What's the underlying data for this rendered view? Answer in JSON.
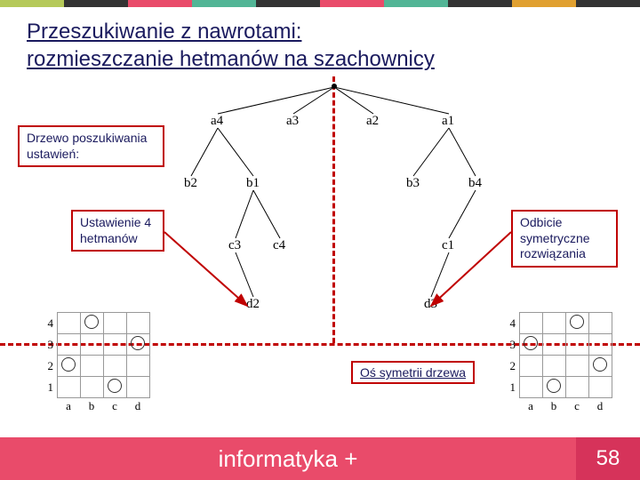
{
  "colorbar": [
    "#b5c95a",
    "#333333",
    "#e94b6a",
    "#52b596",
    "#333333",
    "#e94b6a",
    "#52b596",
    "#333333",
    "#e0a030",
    "#333333"
  ],
  "title": {
    "line1": "Przeszukiwanie z nawrotami:",
    "line2": "rozmieszczanie hetmanów na szachownicy"
  },
  "labels": {
    "tree_search": "Drzewo poszukiwania ustawień:",
    "placement": "Ustawienie 4 hetmanów",
    "symmetric": "Odbicie symetryczne rozwiązania",
    "axis": "Oś symetrii drzewa"
  },
  "tree": {
    "level_a": [
      "a4",
      "a3",
      "a2",
      "a1"
    ],
    "level_b_left": [
      "b2",
      "b1"
    ],
    "level_b_right": [
      "b3",
      "b4"
    ],
    "level_c_left": [
      "c3",
      "c4"
    ],
    "level_c_right": [
      "c1"
    ],
    "level_d_left": [
      "d2"
    ],
    "level_d_right": [
      "d3"
    ]
  },
  "boards": {
    "cols": [
      "a",
      "b",
      "c",
      "d"
    ],
    "rows": [
      "4",
      "3",
      "2",
      "1"
    ],
    "left": {
      "queens": [
        [
          0,
          1
        ],
        [
          1,
          3
        ],
        [
          2,
          0
        ],
        [
          3,
          2
        ]
      ]
    },
    "right": {
      "queens": [
        [
          0,
          2
        ],
        [
          1,
          0
        ],
        [
          2,
          3
        ],
        [
          3,
          1
        ]
      ]
    }
  },
  "footer": {
    "text": "informatyka +",
    "page": "58"
  }
}
